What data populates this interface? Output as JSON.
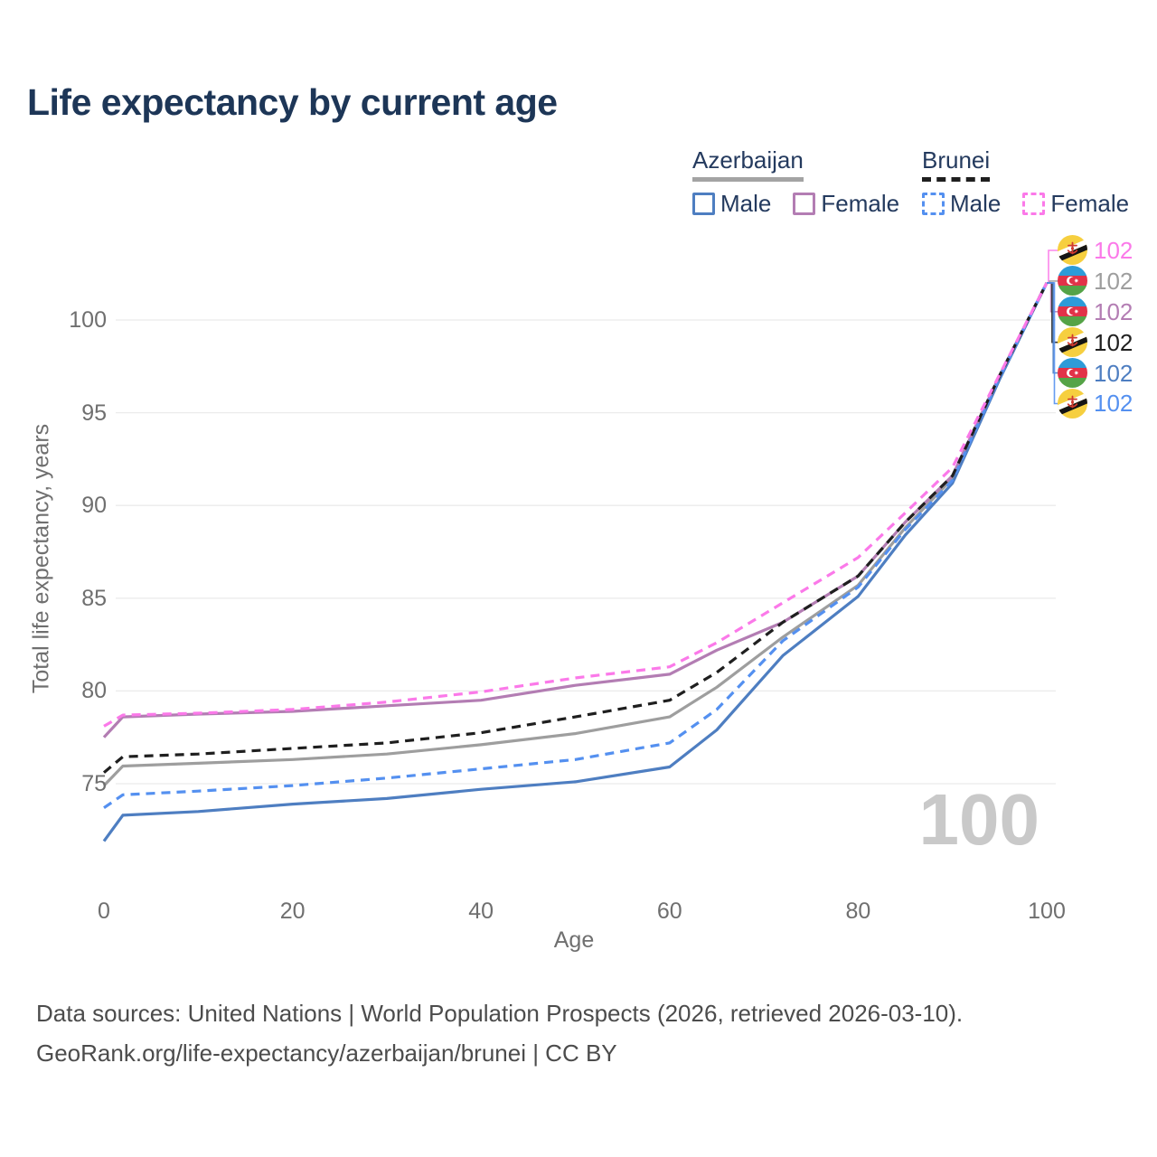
{
  "title": "Life expectancy by current age",
  "legend": {
    "groups": [
      {
        "label": "Azerbaijan",
        "style": "solid",
        "underline_color": "#a3a3a3",
        "items": [
          {
            "label": "Male",
            "color": "#4e7ec1"
          },
          {
            "label": "Female",
            "color": "#b37db3"
          }
        ]
      },
      {
        "label": "Brunei",
        "style": "dashed",
        "underline_color": "#1f1f1f",
        "items": [
          {
            "label": "Male",
            "color": "#5490f0"
          },
          {
            "label": "Female",
            "color": "#fb79e9"
          }
        ]
      }
    ]
  },
  "chart_data": {
    "type": "line",
    "title": "Life expectancy by current age",
    "xlabel": "Age",
    "ylabel": "Total life expectancy, years",
    "x_ticks": [
      0,
      20,
      40,
      60,
      80,
      100
    ],
    "y_ticks": [
      75,
      80,
      85,
      90,
      95,
      100
    ],
    "xlim": [
      0,
      100
    ],
    "ylim": [
      71,
      103
    ],
    "grid": "horizontal-only",
    "legend_position": "top-right",
    "current_age_label": "100",
    "x": [
      0,
      2,
      10,
      20,
      30,
      40,
      50,
      60,
      65,
      72,
      80,
      85,
      90,
      95,
      100
    ],
    "series": [
      {
        "name": "Azerbaijan Both sexes",
        "country": "Azerbaijan",
        "group": "Both",
        "style": "solid",
        "color": "#9e9e9e",
        "values": [
          74.9,
          75.95,
          76.1,
          76.3,
          76.6,
          77.1,
          77.7,
          78.6,
          80.2,
          82.9,
          85.7,
          88.8,
          91.45,
          96.9,
          102
        ]
      },
      {
        "name": "Azerbaijan Male",
        "country": "Azerbaijan",
        "group": "Male",
        "style": "solid",
        "color": "#4e7ec1",
        "values": [
          71.9,
          73.3,
          73.5,
          73.9,
          74.2,
          74.7,
          75.1,
          75.9,
          77.9,
          81.9,
          85.1,
          88.4,
          91.2,
          96.8,
          102
        ]
      },
      {
        "name": "Azerbaijan Female",
        "country": "Azerbaijan",
        "group": "Female",
        "style": "solid",
        "color": "#b37db3",
        "values": [
          77.5,
          78.6,
          78.75,
          78.9,
          79.2,
          79.5,
          80.3,
          80.9,
          82.2,
          83.7,
          86.2,
          89.1,
          91.6,
          97.0,
          102
        ]
      },
      {
        "name": "Brunei Male",
        "country": "Brunei",
        "group": "Male",
        "style": "dashed",
        "color": "#5490f0",
        "values": [
          73.7,
          74.4,
          74.6,
          74.9,
          75.3,
          75.8,
          76.3,
          77.2,
          79.0,
          82.7,
          85.6,
          88.7,
          91.35,
          96.9,
          102
        ]
      },
      {
        "name": "Brunei Both sexes",
        "country": "Brunei",
        "group": "Both",
        "style": "dashed",
        "color": "#1f1f1f",
        "values": [
          75.6,
          76.45,
          76.6,
          76.9,
          77.2,
          77.75,
          78.6,
          79.5,
          81.0,
          83.7,
          86.2,
          89.1,
          91.6,
          97.0,
          102
        ]
      },
      {
        "name": "Brunei Female",
        "country": "Brunei",
        "group": "Female",
        "style": "dashed",
        "color": "#fb79e9",
        "values": [
          78.1,
          78.7,
          78.8,
          79.0,
          79.4,
          79.95,
          80.7,
          81.3,
          82.6,
          84.75,
          87.2,
          89.6,
          92.05,
          97.05,
          102
        ]
      }
    ],
    "end_labels": [
      {
        "value": "102",
        "flag": "brunei",
        "series": "Brunei Female",
        "color": "#fb79e9"
      },
      {
        "value": "102",
        "flag": "azerbaijan",
        "series": "Azerbaijan Both sexes",
        "color": "#9e9e9e"
      },
      {
        "value": "102",
        "flag": "azerbaijan",
        "series": "Azerbaijan Female",
        "color": "#b37db3"
      },
      {
        "value": "102",
        "flag": "brunei",
        "series": "Brunei Both sexes",
        "color": "#1f1f1f"
      },
      {
        "value": "102",
        "flag": "azerbaijan",
        "series": "Azerbaijan Male",
        "color": "#4e7ec1"
      },
      {
        "value": "102",
        "flag": "brunei",
        "series": "Brunei Male",
        "color": "#5490f0"
      }
    ]
  },
  "footer": {
    "line1": "Data sources: United Nations | World Population Prospects (2026, retrieved 2026-03-10).",
    "line2": "GeoRank.org/life-expectancy/azerbaijan/brunei | CC BY"
  }
}
